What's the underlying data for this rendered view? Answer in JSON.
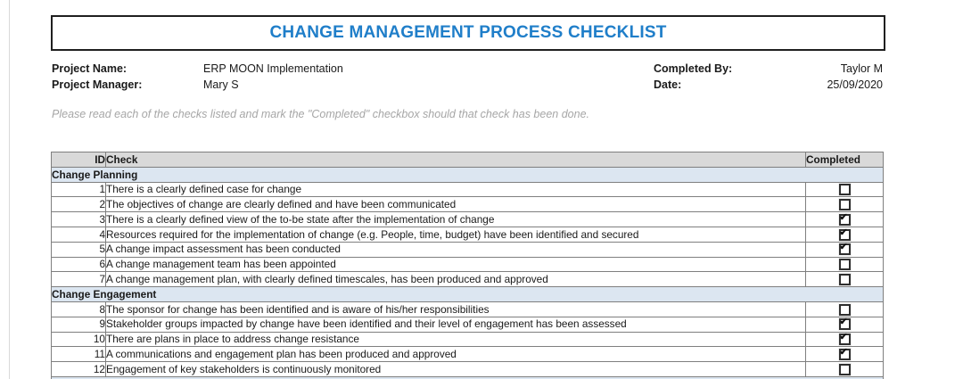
{
  "page": {
    "title": "CHANGE MANAGEMENT PROCESS CHECKLIST"
  },
  "info": {
    "project_name": {
      "label": "Project Name:",
      "value": "ERP MOON Implementation"
    },
    "project_manager": {
      "label": "Project Manager:",
      "value": "Mary S"
    },
    "completed_by": {
      "label": "Completed By:",
      "value": "Taylor M"
    },
    "date": {
      "label": "Date:",
      "value": "25/09/2020"
    }
  },
  "instruction": "Please read each of the checks listed and mark the \"Completed\" checkbox should that check has been done.",
  "table": {
    "headers": {
      "id": "ID",
      "check": "Check",
      "completed": "Completed"
    },
    "sections": [
      {
        "name": "Change Planning",
        "rows": [
          {
            "id": "1",
            "check": "There is a clearly defined case for change",
            "completed": false
          },
          {
            "id": "2",
            "check": "The objectives of change are clearly defined and have been communicated",
            "completed": false
          },
          {
            "id": "3",
            "check": "There is a clearly defined view of the to-be state after the implementation of change",
            "completed": true
          },
          {
            "id": "4",
            "check": "Resources required for the implementation of change (e.g. People, time, budget) have been identified and secured",
            "completed": true
          },
          {
            "id": "5",
            "check": "A change impact assessment has been conducted",
            "completed": true
          },
          {
            "id": "6",
            "check": "A change management team has been appointed",
            "completed": false
          },
          {
            "id": "7",
            "check": "A change management plan, with clearly defined timescales, has been produced and approved",
            "completed": false
          }
        ]
      },
      {
        "name": "Change Engagement",
        "rows": [
          {
            "id": "8",
            "check": "The sponsor for change has been identified and is aware of his/her responsibilities",
            "completed": false
          },
          {
            "id": "9",
            "check": "Stakeholder groups impacted by change have been identified and their level of engagement has been assessed",
            "completed": true
          },
          {
            "id": "10",
            "check": "There are plans in place to address change resistance",
            "completed": true
          },
          {
            "id": "11",
            "check": "A communications and engagement plan has been produced and approved",
            "completed": true
          },
          {
            "id": "12",
            "check": "Engagement of key stakeholders is continuously monitored",
            "completed": false
          }
        ]
      },
      {
        "name": "",
        "rows": []
      }
    ]
  },
  "colors": {
    "accent": "#1F7EC9",
    "header-bg": "#D9D9D9",
    "section-bg": "#DCE6F1",
    "muted": "#A6A6A6"
  }
}
